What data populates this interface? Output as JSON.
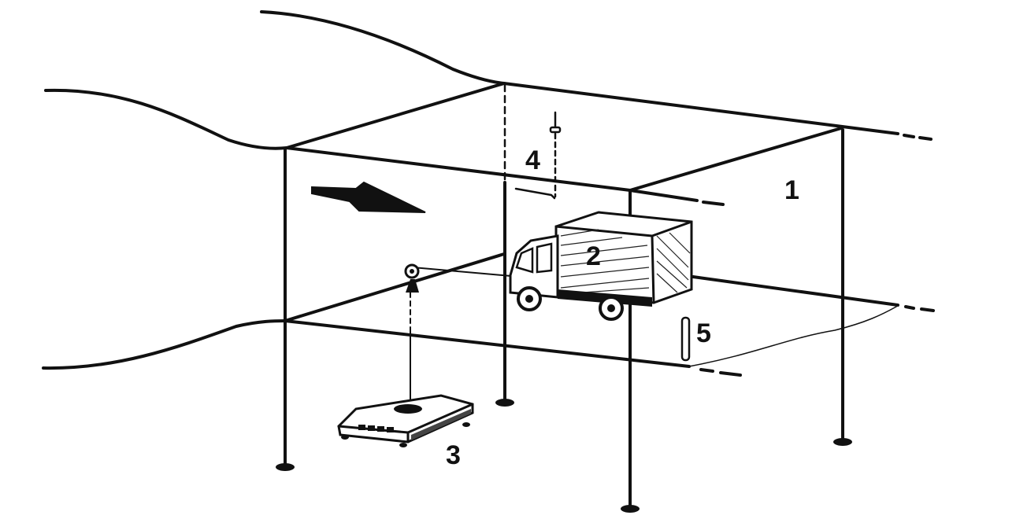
{
  "labels": {
    "canopy": "1",
    "truck": "2",
    "scale": "3",
    "sensor": "4",
    "gauge": "5"
  },
  "colors": {
    "ink": "#111111",
    "background": "#ffffff"
  },
  "icons": {
    "flow_direction": "arrow-right-icon",
    "pulley": "pulley-icon",
    "ceiling_sensor": "sensor-icon"
  }
}
